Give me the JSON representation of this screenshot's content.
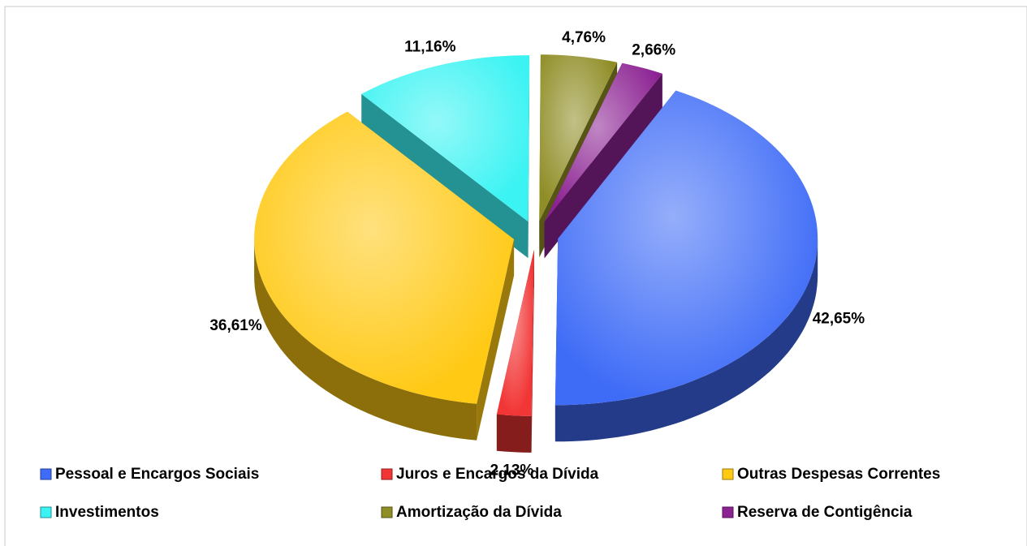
{
  "chart_data": {
    "type": "pie3d",
    "categories": [
      "Pessoal e Encargos Sociais",
      "Juros e Encargos da Dívida",
      "Outras Despesas Correntes",
      "Investimentos",
      "Amortização da Dívida",
      "Reserva de Contigência"
    ],
    "values": [
      42.65,
      2.13,
      36.61,
      11.16,
      4.76,
      2.66
    ],
    "value_labels": [
      "42,65%",
      "2,13%",
      "36,61%",
      "11,16%",
      "4,76%",
      "2,66%"
    ],
    "colors": [
      "#3f6cf7",
      "#f23535",
      "#ffc914",
      "#3cf3f3",
      "#8f8d25",
      "#8c2393"
    ],
    "legend": "bottom"
  }
}
